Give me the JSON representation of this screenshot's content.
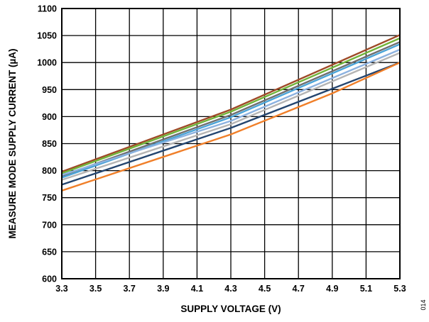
{
  "chart_data": {
    "type": "line",
    "xlabel": "SUPPLY VOLTAGE (V)",
    "ylabel": "MEASURE MODE SUPPLY CURRENT (µA)",
    "xlim": [
      3.3,
      5.3
    ],
    "ylim": [
      600,
      1100
    ],
    "x_ticks": [
      "3.3",
      "3.5",
      "3.7",
      "3.9",
      "4.1",
      "4.3",
      "4.5",
      "4.7",
      "4.9",
      "5.1",
      "5.3"
    ],
    "y_ticks": [
      "600",
      "650",
      "700",
      "750",
      "800",
      "850",
      "900",
      "950",
      "1000",
      "1050",
      "1100"
    ],
    "grid": true,
    "series": [
      {
        "color": "#9e4a27",
        "x": [
          3.3,
          4.3,
          5.3
        ],
        "y": [
          798,
          913,
          1051
        ]
      },
      {
        "color": "#72b33a",
        "x": [
          3.3,
          4.3,
          5.3
        ],
        "y": [
          795,
          909,
          1045
        ]
      },
      {
        "color": "#6f6f6f",
        "x": [
          3.3,
          4.3,
          5.3
        ],
        "y": [
          790,
          903,
          1038
        ]
      },
      {
        "color": "#4aa4d8",
        "x": [
          3.3,
          4.3,
          5.3
        ],
        "y": [
          787,
          899,
          1034
        ]
      },
      {
        "color": "#8cb2e0",
        "x": [
          3.3,
          4.3,
          5.3
        ],
        "y": [
          792,
          892,
          1024
        ]
      },
      {
        "color": "#b4b4b4",
        "x": [
          3.3,
          4.3,
          5.3
        ],
        "y": [
          783,
          886,
          1018
        ]
      },
      {
        "color": "#24456f",
        "x": [
          3.3,
          4.3,
          5.3
        ],
        "y": [
          774,
          879,
          1000
        ]
      },
      {
        "color": "#f07f29",
        "x": [
          3.3,
          4.3,
          4.9,
          5.3
        ],
        "y": [
          763,
          867,
          943,
          1000
        ]
      }
    ],
    "figure_id": "014"
  }
}
